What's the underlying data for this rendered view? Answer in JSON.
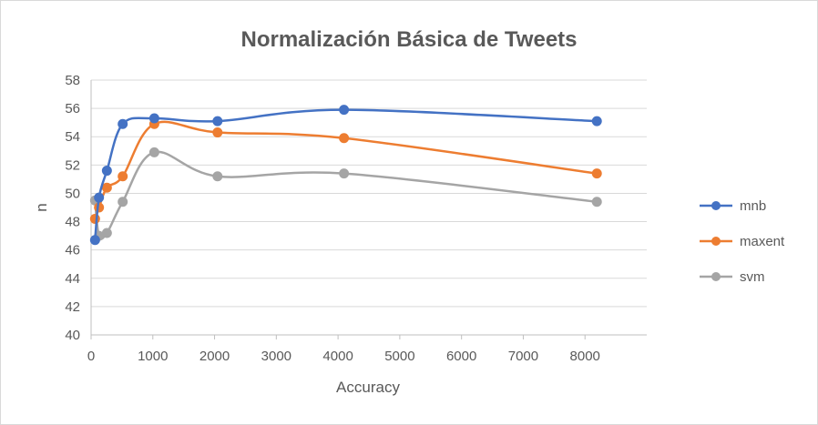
{
  "chart_data": {
    "type": "line",
    "title": "Normalización Básica de Tweets",
    "xlabel": "Accuracy",
    "ylabel": "n",
    "xlim": [
      0,
      9000
    ],
    "ylim": [
      40,
      58
    ],
    "x_ticks": [
      0,
      1000,
      2000,
      3000,
      4000,
      5000,
      6000,
      7000,
      8000
    ],
    "y_ticks": [
      40,
      42,
      44,
      46,
      48,
      50,
      52,
      54,
      56,
      58
    ],
    "grid": "horizontal",
    "legend_position": "right",
    "smooth": true,
    "series": [
      {
        "name": "mnb",
        "color": "#4472c4",
        "x": [
          64,
          128,
          256,
          512,
          1024,
          2048,
          4096,
          8192
        ],
        "y": [
          46.7,
          49.7,
          51.6,
          54.9,
          55.3,
          55.1,
          55.9,
          55.1
        ]
      },
      {
        "name": "maxent",
        "color": "#ed7d31",
        "x": [
          64,
          128,
          256,
          512,
          1024,
          2048,
          4096,
          8192
        ],
        "y": [
          48.2,
          49.0,
          50.4,
          51.2,
          54.9,
          54.3,
          53.9,
          51.4
        ]
      },
      {
        "name": "svm",
        "color": "#a5a5a5",
        "x": [
          64,
          128,
          256,
          512,
          1024,
          2048,
          4096,
          8192
        ],
        "y": [
          49.5,
          47.0,
          47.2,
          49.4,
          52.9,
          51.2,
          51.4,
          49.4
        ]
      }
    ]
  }
}
